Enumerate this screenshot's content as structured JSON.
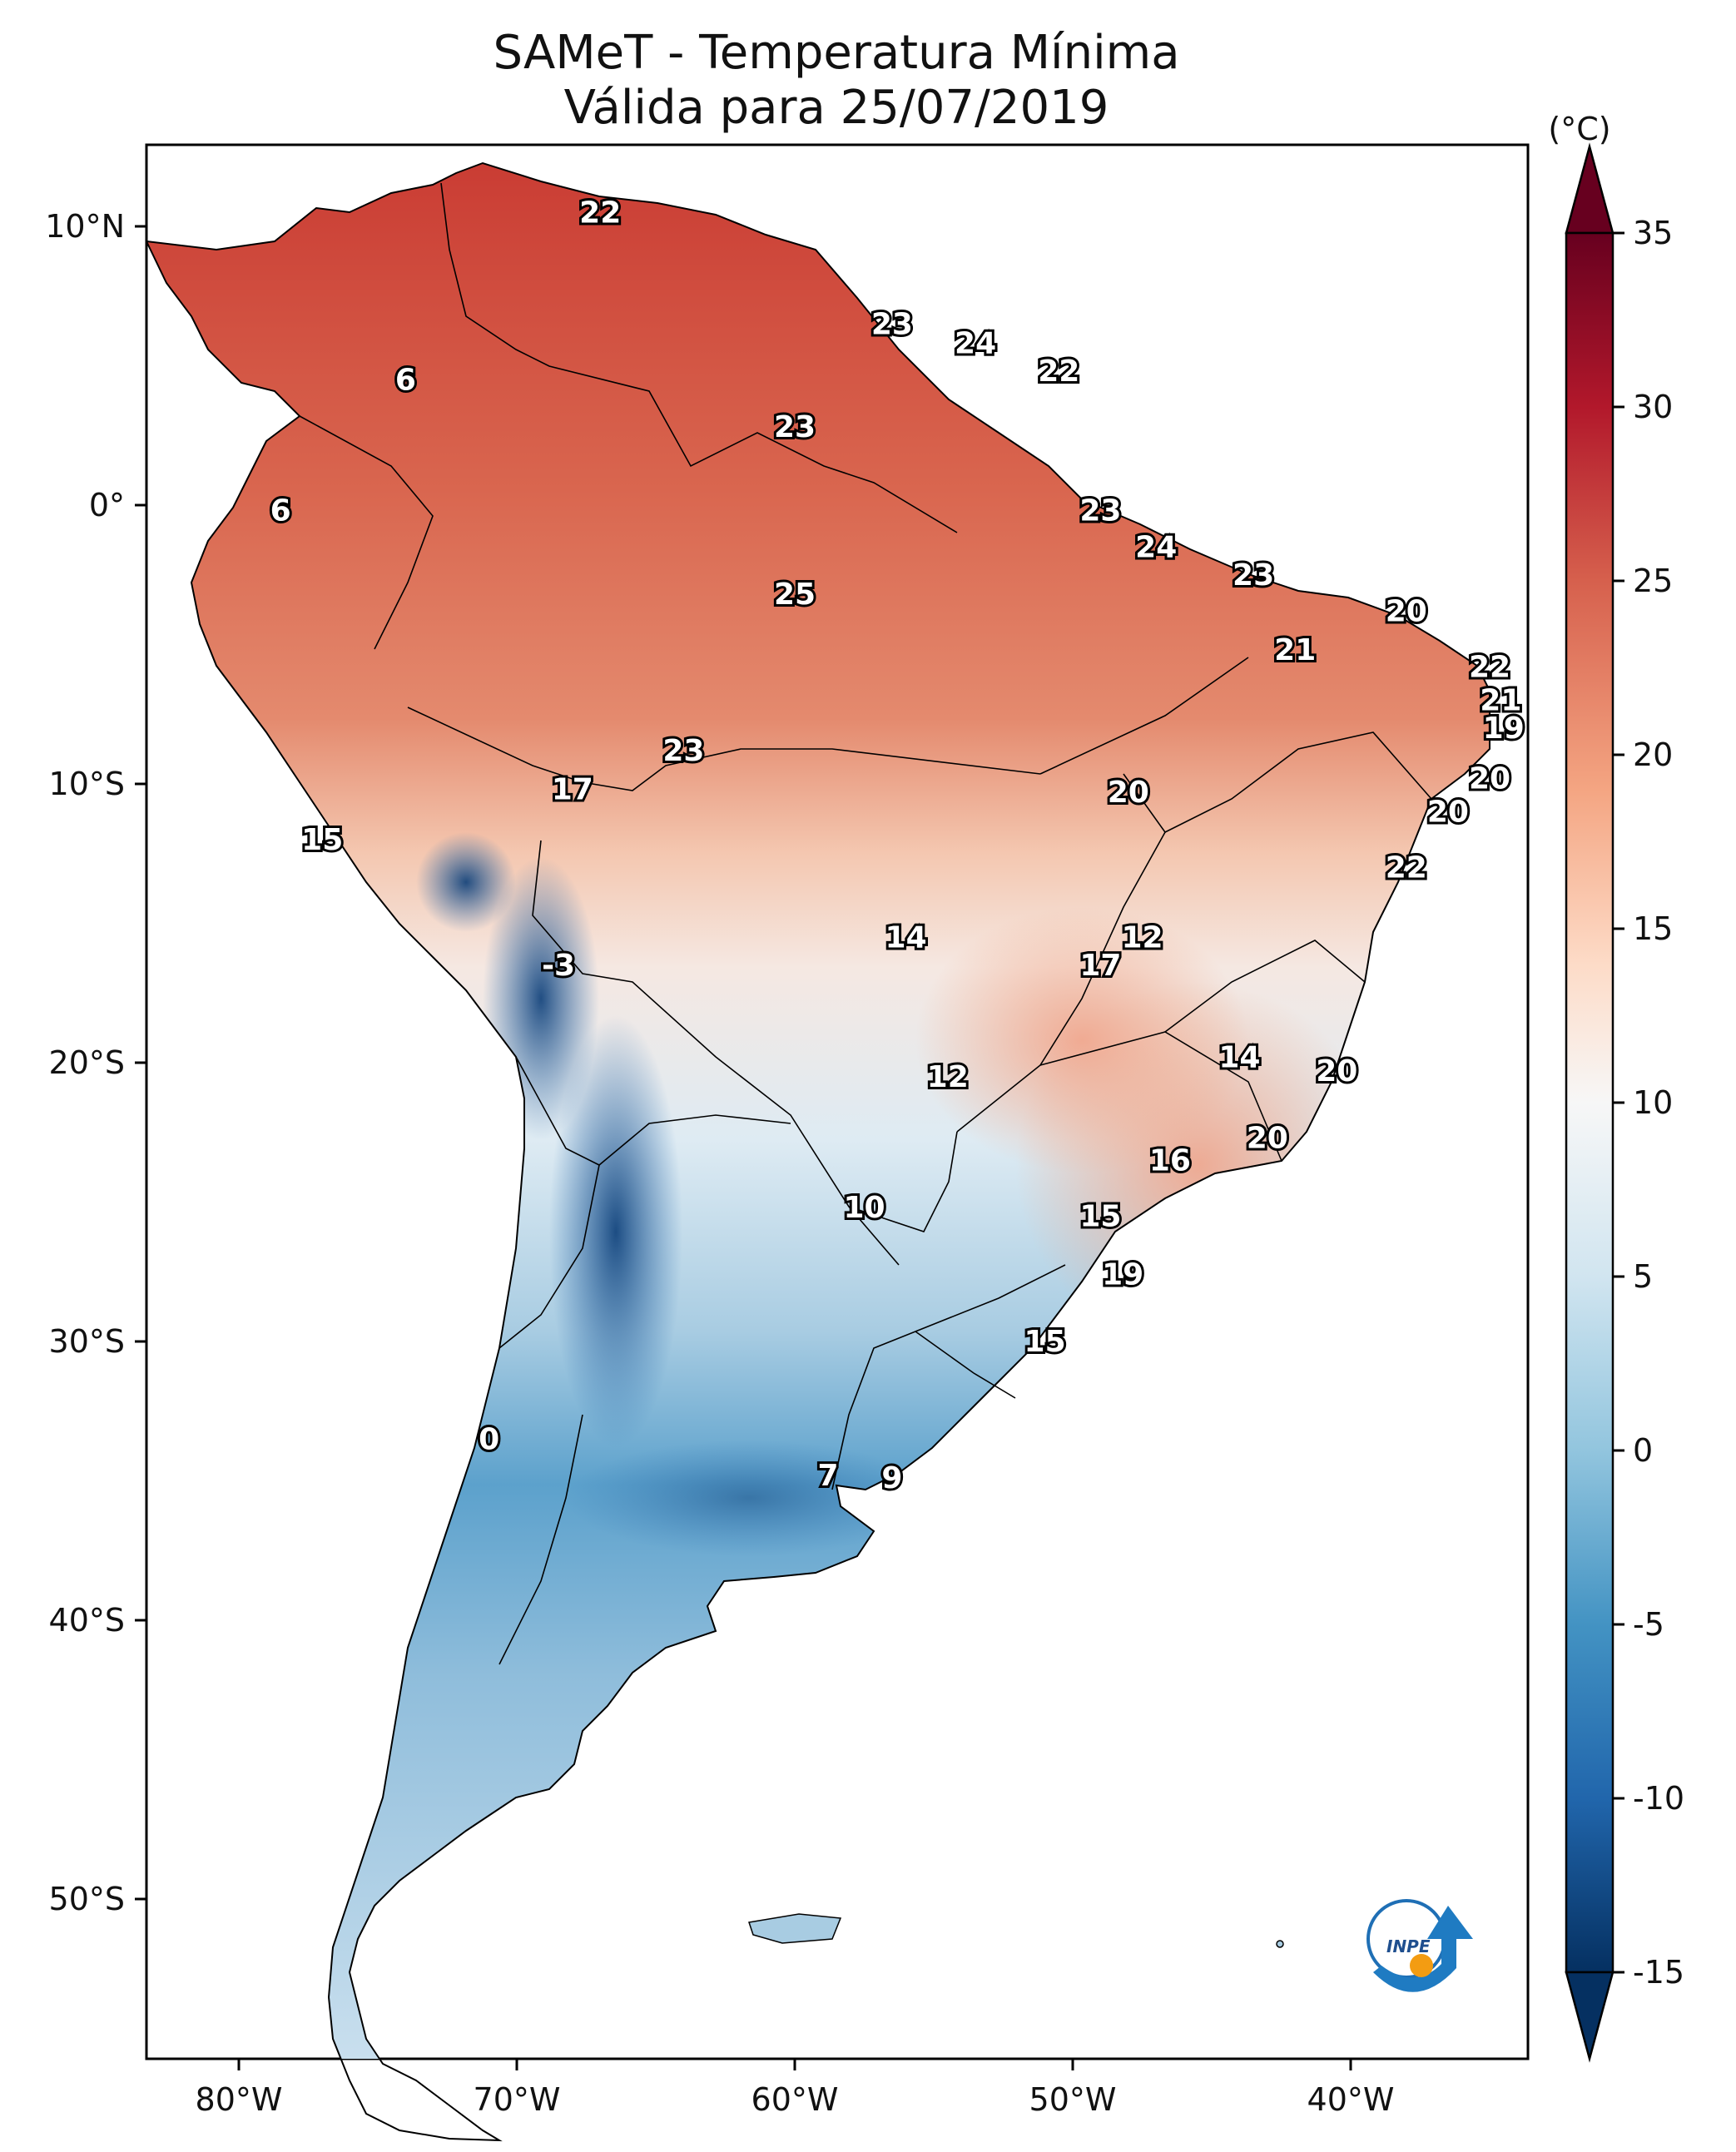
{
  "title": "SAMeT - Temperatura Mínima",
  "subtitle": "Válida para 25/07/2019",
  "colorbar": {
    "unit": "(°C)",
    "ticks": [
      "35",
      "30",
      "25",
      "20",
      "15",
      "10",
      "5",
      "0",
      "-5",
      "-10",
      "-15"
    ],
    "range": [
      -15,
      35
    ],
    "colormap": "RdBu_r",
    "colors_high_to_low": [
      "#67001f",
      "#b2182b",
      "#d6604d",
      "#f4a582",
      "#fddbc7",
      "#f7f7f7",
      "#d1e5f0",
      "#92c5de",
      "#4393c3",
      "#2166ac",
      "#053061"
    ]
  },
  "axes": {
    "lon_ticks": [
      "80°W",
      "70°W",
      "60°W",
      "50°W",
      "40°W"
    ],
    "lat_ticks": [
      "10°N",
      "0°",
      "10°S",
      "20°S",
      "30°S",
      "40°S",
      "50°S"
    ]
  },
  "logo": {
    "text": "INPE",
    "icon": "inpe-logo-icon"
  },
  "station_labels": [
    {
      "text": "22",
      "lon": -67.0,
      "lat": 10.5
    },
    {
      "text": "6",
      "lon": -74.0,
      "lat": 4.5
    },
    {
      "text": "23",
      "lon": -56.5,
      "lat": 6.5
    },
    {
      "text": "24",
      "lon": -53.5,
      "lat": 5.8
    },
    {
      "text": "22",
      "lon": -50.5,
      "lat": 4.8
    },
    {
      "text": "23",
      "lon": -60.0,
      "lat": 2.8
    },
    {
      "text": "6",
      "lon": -78.5,
      "lat": -0.2
    },
    {
      "text": "23",
      "lon": -49.0,
      "lat": -0.2
    },
    {
      "text": "24",
      "lon": -47.0,
      "lat": -1.5
    },
    {
      "text": "25",
      "lon": -60.0,
      "lat": -3.2
    },
    {
      "text": "23",
      "lon": -43.5,
      "lat": -2.5
    },
    {
      "text": "20",
      "lon": -38.0,
      "lat": -3.8
    },
    {
      "text": "21",
      "lon": -42.0,
      "lat": -5.2
    },
    {
      "text": "22",
      "lon": -35.0,
      "lat": -5.8
    },
    {
      "text": "21",
      "lon": -34.6,
      "lat": -7.0
    },
    {
      "text": "19",
      "lon": -34.5,
      "lat": -8.0
    },
    {
      "text": "23",
      "lon": -64.0,
      "lat": -8.8
    },
    {
      "text": "17",
      "lon": -68.0,
      "lat": -10.2
    },
    {
      "text": "20",
      "lon": -48.0,
      "lat": -10.3
    },
    {
      "text": "20",
      "lon": -35.0,
      "lat": -9.8
    },
    {
      "text": "20",
      "lon": -36.5,
      "lat": -11.0
    },
    {
      "text": "15",
      "lon": -77.0,
      "lat": -12.0
    },
    {
      "text": "22",
      "lon": -38.0,
      "lat": -13.0
    },
    {
      "text": "14",
      "lon": -56.0,
      "lat": -15.5
    },
    {
      "text": "12",
      "lon": -47.5,
      "lat": -15.5
    },
    {
      "text": "17",
      "lon": -49.0,
      "lat": -16.5
    },
    {
      "text": "-3",
      "lon": -68.5,
      "lat": -16.5
    },
    {
      "text": "14",
      "lon": -44.0,
      "lat": -19.8
    },
    {
      "text": "12",
      "lon": -54.5,
      "lat": -20.5
    },
    {
      "text": "20",
      "lon": -40.5,
      "lat": -20.3
    },
    {
      "text": "20",
      "lon": -43.0,
      "lat": -22.7
    },
    {
      "text": "16",
      "lon": -46.5,
      "lat": -23.5
    },
    {
      "text": "10",
      "lon": -57.5,
      "lat": -25.2
    },
    {
      "text": "15",
      "lon": -49.0,
      "lat": -25.5
    },
    {
      "text": "19",
      "lon": -48.2,
      "lat": -27.6
    },
    {
      "text": "15",
      "lon": -51.0,
      "lat": -30.0
    },
    {
      "text": "0",
      "lon": -71.0,
      "lat": -33.5
    },
    {
      "text": "7",
      "lon": -58.8,
      "lat": -34.8
    },
    {
      "text": "9",
      "lon": -56.5,
      "lat": -34.9
    }
  ]
}
